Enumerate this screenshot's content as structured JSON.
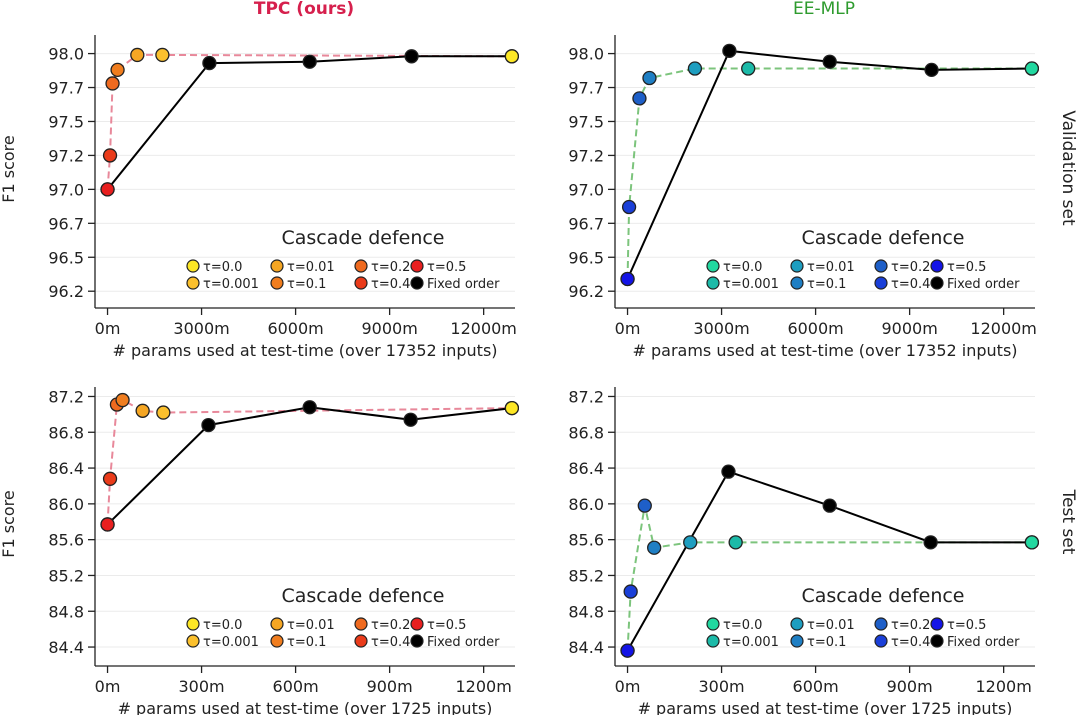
{
  "figure": {
    "col_titles": [
      {
        "text": "TPC (ours)",
        "color": "#d6204d",
        "bold": true
      },
      {
        "text": "EE-MLP",
        "color": "#2e9b2e",
        "bold": false
      }
    ],
    "row_labels": [
      "Validation set",
      "Test set"
    ],
    "ylabel": "F1 score",
    "legend_title": "Cascade defence"
  },
  "chart_data": [
    {
      "type": "line",
      "panel": "tpc-validation",
      "xlabel": "# params used at test-time (over 17352 inputs)",
      "ylabel": "F1 score",
      "xlim": [
        -400,
        13000
      ],
      "ylim": [
        96.2,
        98.1
      ],
      "xticks": [
        0,
        3000,
        6000,
        9000,
        12000
      ],
      "xtick_labels": [
        "0m",
        "3000m",
        "6000m",
        "9000m",
        "12000m"
      ],
      "yticks": [
        96.25,
        96.5,
        96.75,
        97.0,
        97.25,
        97.5,
        97.75,
        98.0
      ],
      "ytick_labels": [
        "96.2",
        "96.5",
        "96.7",
        "97.0",
        "97.2",
        "97.5",
        "97.7",
        "98.0"
      ],
      "dash_color": "#e8889a",
      "legend_entries": [
        "τ=0.0",
        "τ=0.01",
        "τ=0.2",
        "τ=0.5",
        "τ=0.001",
        "τ=0.1",
        "τ=0.4",
        "Fixed order"
      ],
      "legend_colors": [
        "#fde725",
        "#f5a623",
        "#ef6a1f",
        "#e81f1f",
        "#fbc02d",
        "#f07d1e",
        "#ea3b1a",
        "#000000"
      ],
      "series": [
        {
          "name": "Cascade defence",
          "style": "dashed",
          "points": [
            {
              "x": 0,
              "y": 97.0,
              "color": "#e81f1f"
            },
            {
              "x": 80,
              "y": 97.25,
              "color": "#ea3b1a"
            },
            {
              "x": 160,
              "y": 97.78,
              "color": "#ef6a1f"
            },
            {
              "x": 320,
              "y": 97.88,
              "color": "#f07d1e"
            },
            {
              "x": 950,
              "y": 97.99,
              "color": "#f5a623"
            },
            {
              "x": 1750,
              "y": 97.99,
              "color": "#fbc02d"
            },
            {
              "x": 12900,
              "y": 97.98,
              "color": "#fde725"
            }
          ]
        },
        {
          "name": "Fixed order",
          "style": "solid",
          "points": [
            {
              "x": 0,
              "y": 97.0,
              "color": "#e81f1f"
            },
            {
              "x": 3250,
              "y": 97.93,
              "color": "#000000"
            },
            {
              "x": 6450,
              "y": 97.94,
              "color": "#000000"
            },
            {
              "x": 9700,
              "y": 97.98,
              "color": "#000000"
            },
            {
              "x": 12900,
              "y": 97.98,
              "color": "#fde725"
            }
          ]
        }
      ]
    },
    {
      "type": "line",
      "panel": "eemlp-validation",
      "xlabel": "# params used at test-time (over 17352 inputs)",
      "ylabel": "",
      "xlim": [
        -400,
        13000
      ],
      "ylim": [
        96.2,
        98.1
      ],
      "xticks": [
        0,
        3000,
        6000,
        9000,
        12000
      ],
      "xtick_labels": [
        "0m",
        "3000m",
        "6000m",
        "9000m",
        "12000m"
      ],
      "yticks": [
        96.25,
        96.5,
        96.75,
        97.0,
        97.25,
        97.5,
        97.75,
        98.0
      ],
      "ytick_labels": [
        "96.2",
        "96.5",
        "96.7",
        "97.0",
        "97.2",
        "97.5",
        "97.7",
        "98.0"
      ],
      "dash_color": "#7cc47c",
      "legend_entries": [
        "τ=0.0",
        "τ=0.01",
        "τ=0.2",
        "τ=0.5",
        "τ=0.001",
        "τ=0.1",
        "τ=0.4",
        "Fixed order"
      ],
      "legend_colors": [
        "#22d8a0",
        "#1e9ec0",
        "#1e5fc8",
        "#1414e6",
        "#1cbaa8",
        "#1f7fc4",
        "#1a3fd8",
        "#000000"
      ],
      "series": [
        {
          "name": "Cascade defence",
          "style": "dashed",
          "points": [
            {
              "x": 0,
              "y": 96.34,
              "color": "#1414e6"
            },
            {
              "x": 50,
              "y": 96.87,
              "color": "#1a3fd8"
            },
            {
              "x": 380,
              "y": 97.67,
              "color": "#1e5fc8"
            },
            {
              "x": 700,
              "y": 97.82,
              "color": "#1f7fc4"
            },
            {
              "x": 2150,
              "y": 97.89,
              "color": "#1e9ec0"
            },
            {
              "x": 3850,
              "y": 97.89,
              "color": "#1cbaa8"
            },
            {
              "x": 12900,
              "y": 97.89,
              "color": "#22d8a0"
            }
          ]
        },
        {
          "name": "Fixed order",
          "style": "solid",
          "points": [
            {
              "x": 0,
              "y": 96.34,
              "color": "#1414e6"
            },
            {
              "x": 3250,
              "y": 98.02,
              "color": "#000000"
            },
            {
              "x": 6450,
              "y": 97.94,
              "color": "#000000"
            },
            {
              "x": 9700,
              "y": 97.88,
              "color": "#000000"
            },
            {
              "x": 12900,
              "y": 97.89,
              "color": "#22d8a0"
            }
          ]
        }
      ]
    },
    {
      "type": "line",
      "panel": "tpc-test",
      "xlabel": "# params used at test-time (over 1725 inputs)",
      "ylabel": "F1 score",
      "xlim": [
        -40,
        1300
      ],
      "ylim": [
        84.3,
        87.25
      ],
      "xticks": [
        0,
        300,
        600,
        900,
        1200
      ],
      "xtick_labels": [
        "0m",
        "300m",
        "600m",
        "900m",
        "1200m"
      ],
      "yticks": [
        84.4,
        84.8,
        85.2,
        85.6,
        86.0,
        86.4,
        86.8,
        87.2
      ],
      "ytick_labels": [
        "84.4",
        "84.8",
        "85.2",
        "85.6",
        "86.0",
        "86.4",
        "86.8",
        "87.2"
      ],
      "dash_color": "#e8889a",
      "legend_entries": [
        "τ=0.0",
        "τ=0.01",
        "τ=0.2",
        "τ=0.5",
        "τ=0.001",
        "τ=0.1",
        "τ=0.4",
        "Fixed order"
      ],
      "legend_colors": [
        "#fde725",
        "#f5a623",
        "#ef6a1f",
        "#e81f1f",
        "#fbc02d",
        "#f07d1e",
        "#ea3b1a",
        "#000000"
      ],
      "series": [
        {
          "name": "Cascade defence",
          "style": "dashed",
          "points": [
            {
              "x": 0,
              "y": 85.77,
              "color": "#e81f1f"
            },
            {
              "x": 8,
              "y": 86.28,
              "color": "#ea3b1a"
            },
            {
              "x": 30,
              "y": 87.11,
              "color": "#ef6a1f"
            },
            {
              "x": 48,
              "y": 87.16,
              "color": "#f07d1e"
            },
            {
              "x": 112,
              "y": 87.04,
              "color": "#f5a623"
            },
            {
              "x": 178,
              "y": 87.02,
              "color": "#fbc02d"
            },
            {
              "x": 1290,
              "y": 87.07,
              "color": "#fde725"
            }
          ]
        },
        {
          "name": "Fixed order",
          "style": "solid",
          "points": [
            {
              "x": 0,
              "y": 85.77,
              "color": "#e81f1f"
            },
            {
              "x": 322,
              "y": 86.88,
              "color": "#000000"
            },
            {
              "x": 645,
              "y": 87.08,
              "color": "#000000"
            },
            {
              "x": 967,
              "y": 86.94,
              "color": "#000000"
            },
            {
              "x": 1290,
              "y": 87.07,
              "color": "#fde725"
            }
          ]
        }
      ]
    },
    {
      "type": "line",
      "panel": "eemlp-test",
      "xlabel": "# params used at test-time (over 1725 inputs)",
      "ylabel": "",
      "xlim": [
        -40,
        1300
      ],
      "ylim": [
        84.3,
        87.25
      ],
      "xticks": [
        0,
        300,
        600,
        900,
        1200
      ],
      "xtick_labels": [
        "0m",
        "300m",
        "600m",
        "900m",
        "1200m"
      ],
      "yticks": [
        84.4,
        84.8,
        85.2,
        85.6,
        86.0,
        86.4,
        86.8,
        87.2
      ],
      "ytick_labels": [
        "84.4",
        "84.8",
        "85.2",
        "85.6",
        "86.0",
        "86.4",
        "86.8",
        "87.2"
      ],
      "dash_color": "#7cc47c",
      "legend_entries": [
        "τ=0.0",
        "τ=0.01",
        "τ=0.2",
        "τ=0.5",
        "τ=0.001",
        "τ=0.1",
        "τ=0.4",
        "Fixed order"
      ],
      "legend_colors": [
        "#22d8a0",
        "#1e9ec0",
        "#1e5fc8",
        "#1414e6",
        "#1cbaa8",
        "#1f7fc4",
        "#1a3fd8",
        "#000000"
      ],
      "series": [
        {
          "name": "Cascade defence",
          "style": "dashed",
          "points": [
            {
              "x": 0,
              "y": 84.36,
              "color": "#1414e6"
            },
            {
              "x": 10,
              "y": 85.02,
              "color": "#1a3fd8"
            },
            {
              "x": 55,
              "y": 85.98,
              "color": "#1e5fc8"
            },
            {
              "x": 85,
              "y": 85.51,
              "color": "#1f7fc4"
            },
            {
              "x": 200,
              "y": 85.57,
              "color": "#1e9ec0"
            },
            {
              "x": 345,
              "y": 85.57,
              "color": "#1cbaa8"
            },
            {
              "x": 1290,
              "y": 85.57,
              "color": "#22d8a0"
            }
          ]
        },
        {
          "name": "Fixed order",
          "style": "solid",
          "points": [
            {
              "x": 0,
              "y": 84.36,
              "color": "#1414e6"
            },
            {
              "x": 322,
              "y": 86.36,
              "color": "#000000"
            },
            {
              "x": 645,
              "y": 85.98,
              "color": "#000000"
            },
            {
              "x": 967,
              "y": 85.57,
              "color": "#000000"
            },
            {
              "x": 1290,
              "y": 85.57,
              "color": "#22d8a0"
            }
          ]
        }
      ]
    }
  ]
}
